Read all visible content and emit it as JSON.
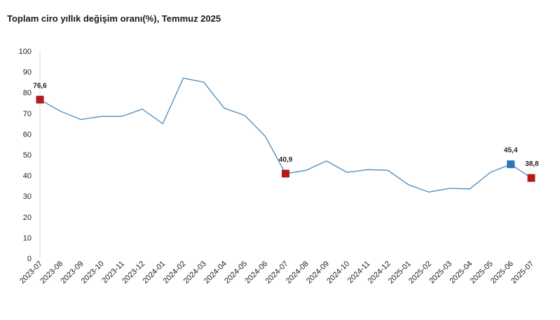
{
  "chart_data": {
    "type": "line",
    "title": "Toplam ciro yıllık değişim oranı(%), Temmuz 2025",
    "xlabel": "",
    "ylabel": "",
    "ylim": [
      0,
      100
    ],
    "yticks": [
      0,
      10,
      20,
      30,
      40,
      50,
      60,
      70,
      80,
      90,
      100
    ],
    "grid": false,
    "legend": "none",
    "categories": [
      "2023-07",
      "2023-08",
      "2023-09",
      "2023-10",
      "2023-11",
      "2023-12",
      "2024-01",
      "2024-02",
      "2024-03",
      "2024-04",
      "2024-05",
      "2024-06",
      "2024-07",
      "2024-08",
      "2024-09",
      "2024-10",
      "2024-11",
      "2024-12",
      "2025-01",
      "2025-02",
      "2025-03",
      "2025-04",
      "2025-05",
      "2025-06",
      "2025-07"
    ],
    "series": [
      {
        "values": [
          76.6,
          71.0,
          67.0,
          68.5,
          68.5,
          72.0,
          65.0,
          87.0,
          85.0,
          72.5,
          69.0,
          59.0,
          40.9,
          42.5,
          47.0,
          41.5,
          42.8,
          42.5,
          35.5,
          32.0,
          33.8,
          33.5,
          41.5,
          45.4,
          38.8
        ],
        "color": "#4a8bbf"
      }
    ],
    "highlighted_points": [
      {
        "category": "2023-07",
        "value": 76.6,
        "label": "76,6",
        "color": "#b5191c"
      },
      {
        "category": "2024-07",
        "value": 40.9,
        "label": "40,9",
        "color": "#b5191c"
      },
      {
        "category": "2025-06",
        "value": 45.4,
        "label": "45,4",
        "color": "#2e75b6"
      },
      {
        "category": "2025-07",
        "value": 38.8,
        "label": "38,8",
        "color": "#b5191c"
      }
    ]
  }
}
